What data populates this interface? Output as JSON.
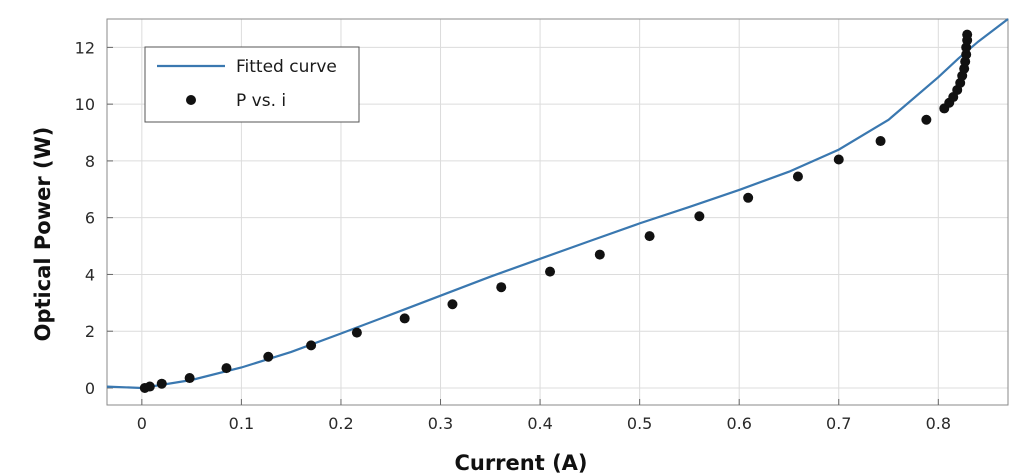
{
  "chart_data": {
    "type": "scatter",
    "xlabel": "Current (A)",
    "ylabel": "Optical Power (W)",
    "xlim": [
      -0.035,
      0.87
    ],
    "ylim": [
      -0.6,
      13
    ],
    "xticks": [
      0,
      0.1,
      0.2,
      0.3,
      0.4,
      0.5,
      0.6,
      0.7,
      0.8
    ],
    "yticks": [
      0,
      2,
      4,
      6,
      8,
      10,
      12
    ],
    "grid": true,
    "legend_position": "top-left",
    "series": [
      {
        "name": "Fitted curve",
        "kind": "line",
        "color": "#3a78b0",
        "x": [
          -0.035,
          0.0,
          0.05,
          0.1,
          0.15,
          0.2,
          0.25,
          0.3,
          0.35,
          0.4,
          0.45,
          0.5,
          0.55,
          0.6,
          0.65,
          0.7,
          0.75,
          0.8,
          0.82,
          0.84,
          0.87
        ],
        "y": [
          0.05,
          0.0,
          0.28,
          0.72,
          1.27,
          1.92,
          2.58,
          3.25,
          3.92,
          4.55,
          5.18,
          5.8,
          6.38,
          6.98,
          7.62,
          8.4,
          9.45,
          10.95,
          11.6,
          12.2,
          13.0
        ]
      },
      {
        "name": "P vs. i",
        "kind": "scatter",
        "color": "#111111",
        "x": [
          0.003,
          0.008,
          0.02,
          0.048,
          0.085,
          0.127,
          0.17,
          0.216,
          0.264,
          0.312,
          0.361,
          0.41,
          0.46,
          0.51,
          0.56,
          0.609,
          0.659,
          0.7,
          0.742,
          0.788,
          0.806,
          0.811,
          0.815,
          0.819,
          0.822,
          0.824,
          0.826,
          0.827,
          0.828,
          0.828,
          0.829,
          0.829
        ],
        "y": [
          0.0,
          0.05,
          0.15,
          0.35,
          0.7,
          1.1,
          1.5,
          1.95,
          2.45,
          2.95,
          3.55,
          4.1,
          4.7,
          5.35,
          6.05,
          6.7,
          7.45,
          8.05,
          8.7,
          9.45,
          9.85,
          10.05,
          10.25,
          10.5,
          10.75,
          11.0,
          11.25,
          11.5,
          11.75,
          12.0,
          12.25,
          12.45
        ]
      }
    ]
  }
}
